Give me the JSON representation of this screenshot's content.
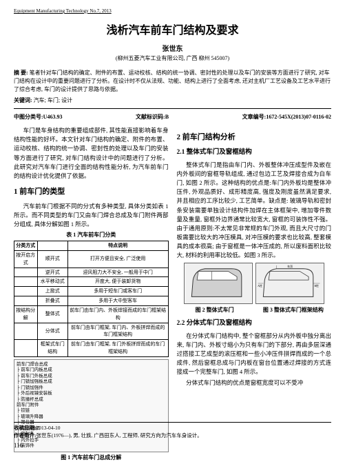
{
  "journal_header": "Equipment  Manufacturing Technology No.7, 2013",
  "title": "浅析汽车前车门结构及要求",
  "author": "张世东",
  "affiliation": "(柳州五菱汽车工业有限公司, 广西  柳州  545007)",
  "abstract_label": "摘  要:",
  "abstract_text": "笔者针对车门结构的确定、附件的布置、运动校核、结构的统一协调、密封性的处理以及车门的安装等方面进行了研究, 对车门结构在设计中的重要问题进行了分析。在设计时不仅从法规、功能、结构上进行了全面考虑, 还对主机厂工艺设备及工艺水平进行了综合考虑, 车门的设计提供了思路与依据。",
  "keywords_label": "关键词:",
  "keywords_text": "汽车; 车门; 设计",
  "meta": {
    "clc_label": "中图分类号:",
    "clc": "U463.93",
    "doc_code_label": "文献标识码:",
    "doc_code": "B",
    "article_no_label": "文章编号:",
    "article_no": "1672-545X(2013)07-0116-02"
  },
  "left": {
    "intro": "车门是车身结构的重要组成部件, 其性能直接影响着车身结构性能的好坏。本文针对车门结构的确定、附件的布置、运动校核、结构的统一协调、密封性的处理以及车门的安装等方面进行了研究, 对车门结构设计中的问题进行了分析。此研究对汽车车门进行全面的结构性能分析, 为汽车前车门的结构设计优化提供了依据。",
    "h1": "1  前车门的类型",
    "p2": "汽车前车门根据不同的分式有多种类型, 具体分类如表 1 所示。而不同类型的车门又由车门焊合总成及车门附件两部分组成, 具体分解如图 1 所示。",
    "table_caption": "表 1  汽车前车门分类",
    "table": {
      "cols": [
        "分类方式",
        "",
        "特点说明"
      ],
      "rows": [
        [
          "按开启方式",
          "顺开式",
          "打开方便且安全, 广泛使用"
        ],
        [
          "",
          "逆开式",
          "迎风阻力大不安全, 一般用于中门"
        ],
        [
          "",
          "水平移动式",
          "开度大, 便于装卸货物"
        ],
        [
          "",
          "上掀式",
          "多用于短车门或客车门"
        ],
        [
          "",
          "折叠式",
          "多用于大中型客车"
        ],
        [
          "按结构分解",
          "整体式",
          "前车门由车门内、外板焊接而成的车门框架结构"
        ],
        [
          "",
          "分体式",
          "前车门由车门框架, 车门内、外板拼焊而成的车门框架结构"
        ],
        [
          "",
          "框架式车门结构",
          "前车门由车门框架, 车门外板拼焊而成的车门框架结构"
        ]
      ]
    },
    "fig1_caption": "图 1  汽车前车门总成分解",
    "fig1_tree": [
      "前车门焊合总成",
      "├ 前车门内板总成",
      "├ 前车门外板总成",
      "├ 门锁加强板总成",
      "├ 门锁加强件",
      "├ 外后视镜安装板",
      "├ 防撞杆总成",
      "前车门附件",
      "├ 铰链",
      "├ 玻璃升降器",
      "├ 限位器",
      "├ 门锁/锁扣",
      "├ 密封条",
      "├ 内外拉手",
      "└ 装饰件"
    ]
  },
  "right": {
    "h1": "2  前车门结构分析",
    "h2_1": "2.1 整体式车门及窗框结构",
    "p1": "整体式车门是指由车门内、外板整体冲压成型件及嵌在内外板间的窗框导轨组成, 通过包边工艺及焊接合成为白车门, 如图 2 所示。这种结构的优点是:车门内外板均是整体冲压件, 外观品质好、成形精度高, 强度及刚度虽然满足要求, 并且相应的工序比较少, 工艺简单。缺点是: 玻璃导轨和密封条安装需要单独设计结构件加焊在主体框架中, 增加零件数量及重量, 窗框外边界通常比较宽大, 窗框的可装饰性不强。由于通用原则:不太常见非常规的车门外观, 而且大尺寸的门板需要比较大的冲压模具, 对冲压模的要求也比较高, 整套模具的成本很高; 由于窗框是一体冲压成的, 所以废料面积比较大, 材料的利用率比较低。如图 3 所示。",
    "fig2_caption": "图 2  整体式车门",
    "fig3_caption": "图 3  整体式车门框架结构",
    "h2_2": "2.2 分体式车门及窗框结构",
    "p2": "在分体式车门结构中, 整个窗框部分从内外板中独分离出来, 车门内、外板寸缩小为只有车门的下部分, 再由多层深通过搭接工艺成型的滚压框和一些小冲压件拼焊而成的一个总成件, 然后窗框总成与门内板在窗台位置通过焊接的方式连接成一个完整车门, 如图 4 所示。",
    "p3": "分体式车门结构的优点是窗框宽度可以不受冲"
  },
  "footer": {
    "received_label": "收稿日期:",
    "received": "2013-04-10",
    "author_bio_label": "作者简介:",
    "author_bio": "张世东(1976—), 男, 壮族, 广西田东人, 工程师, 研究方向为汽车车身设计。",
    "page": "116"
  },
  "colors": {
    "text": "#000000",
    "bg": "#ffffff",
    "rule": "#000000",
    "fig_border": "#666666"
  }
}
